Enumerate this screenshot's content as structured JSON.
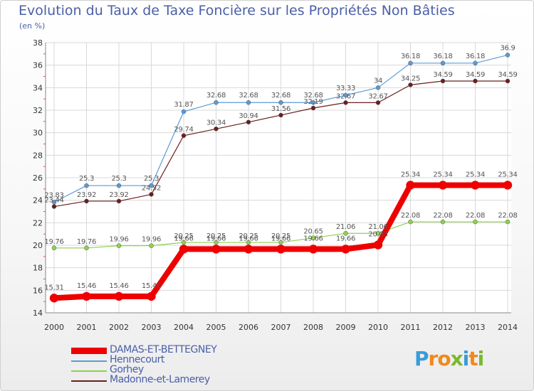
{
  "chart_data": {
    "type": "line",
    "title": "Evolution du Taux de Taxe Foncière sur les Propriétés Non Bâties",
    "ylabel": "(en %)",
    "xlabel": "",
    "ylim": [
      14,
      38
    ],
    "yticks": [
      14,
      16,
      18,
      20,
      22,
      24,
      26,
      28,
      30,
      32,
      34,
      36,
      38
    ],
    "categories": [
      "2000",
      "2001",
      "2002",
      "2003",
      "2004",
      "2005",
      "2006",
      "2007",
      "2008",
      "2009",
      "2010",
      "2011",
      "2012",
      "2013",
      "2014"
    ],
    "grid": true,
    "series": [
      {
        "name": "DAMAS-ET-BETTEGNEY",
        "color": "#ee0000",
        "values": [
          15.31,
          15.46,
          15.46,
          15.46,
          19.66,
          19.66,
          19.66,
          19.66,
          19.66,
          19.66,
          20.03,
          25.34,
          25.34,
          25.34,
          25.34
        ],
        "labels": [
          "15.31",
          "15.46",
          "15.46",
          "15.46",
          "19.66",
          "19.66",
          "19.66",
          "19.66",
          "19.66",
          "19.66",
          "20.03",
          "25.34",
          "25.34",
          "25.34",
          "25.34"
        ]
      },
      {
        "name": "Hennecourt",
        "color": "#5b9bd5",
        "values": [
          23.83,
          25.3,
          25.3,
          25.3,
          31.87,
          32.68,
          32.68,
          32.68,
          32.68,
          33.33,
          34,
          36.18,
          36.18,
          36.18,
          36.9
        ],
        "labels": [
          "23.83",
          "25.3",
          "25.3",
          "25.3",
          "31.87",
          "32.68",
          "32.68",
          "32.68",
          "32.68",
          "33.33",
          "34",
          "36.18",
          "36.18",
          "36.18",
          "36.9"
        ]
      },
      {
        "name": "Gorhey",
        "color": "#8fd14f",
        "values": [
          19.76,
          19.76,
          19.96,
          19.96,
          20.25,
          20.25,
          20.25,
          20.25,
          20.65,
          21.06,
          21.06,
          22.08,
          22.08,
          22.08,
          22.08
        ],
        "labels": [
          "19.76",
          "19.76",
          "19.96",
          "19.96",
          "20.25",
          "20.25",
          "20.25",
          "20.25",
          "20.65",
          "21.06",
          "21.06",
          "22.08",
          "22.08",
          "22.08",
          "22.08"
        ]
      },
      {
        "name": "Madonne-et-Lamerey",
        "color": "#6b1e1e",
        "values": [
          23.44,
          23.92,
          23.92,
          24.52,
          29.74,
          30.34,
          30.94,
          31.56,
          32.19,
          32.67,
          32.67,
          34.25,
          34.59,
          34.59,
          34.59
        ],
        "labels": [
          "23.44",
          "23.92",
          "23.92",
          "24.52",
          "29.74",
          "30.34",
          "30.94",
          "31.56",
          "32.19",
          "32.67",
          "32.67",
          "34.25",
          "34.59",
          "34.59",
          "34.59"
        ]
      }
    ]
  },
  "logo": {
    "text": "Proxiti",
    "letters": [
      "P",
      "r",
      "o",
      "x",
      "i",
      "t",
      "i"
    ],
    "colors": [
      "#3a9bd9",
      "#f08a1c",
      "#f08a1c",
      "#7cb82f",
      "#3a9bd9",
      "#f08a1c",
      "#7cb82f"
    ]
  }
}
